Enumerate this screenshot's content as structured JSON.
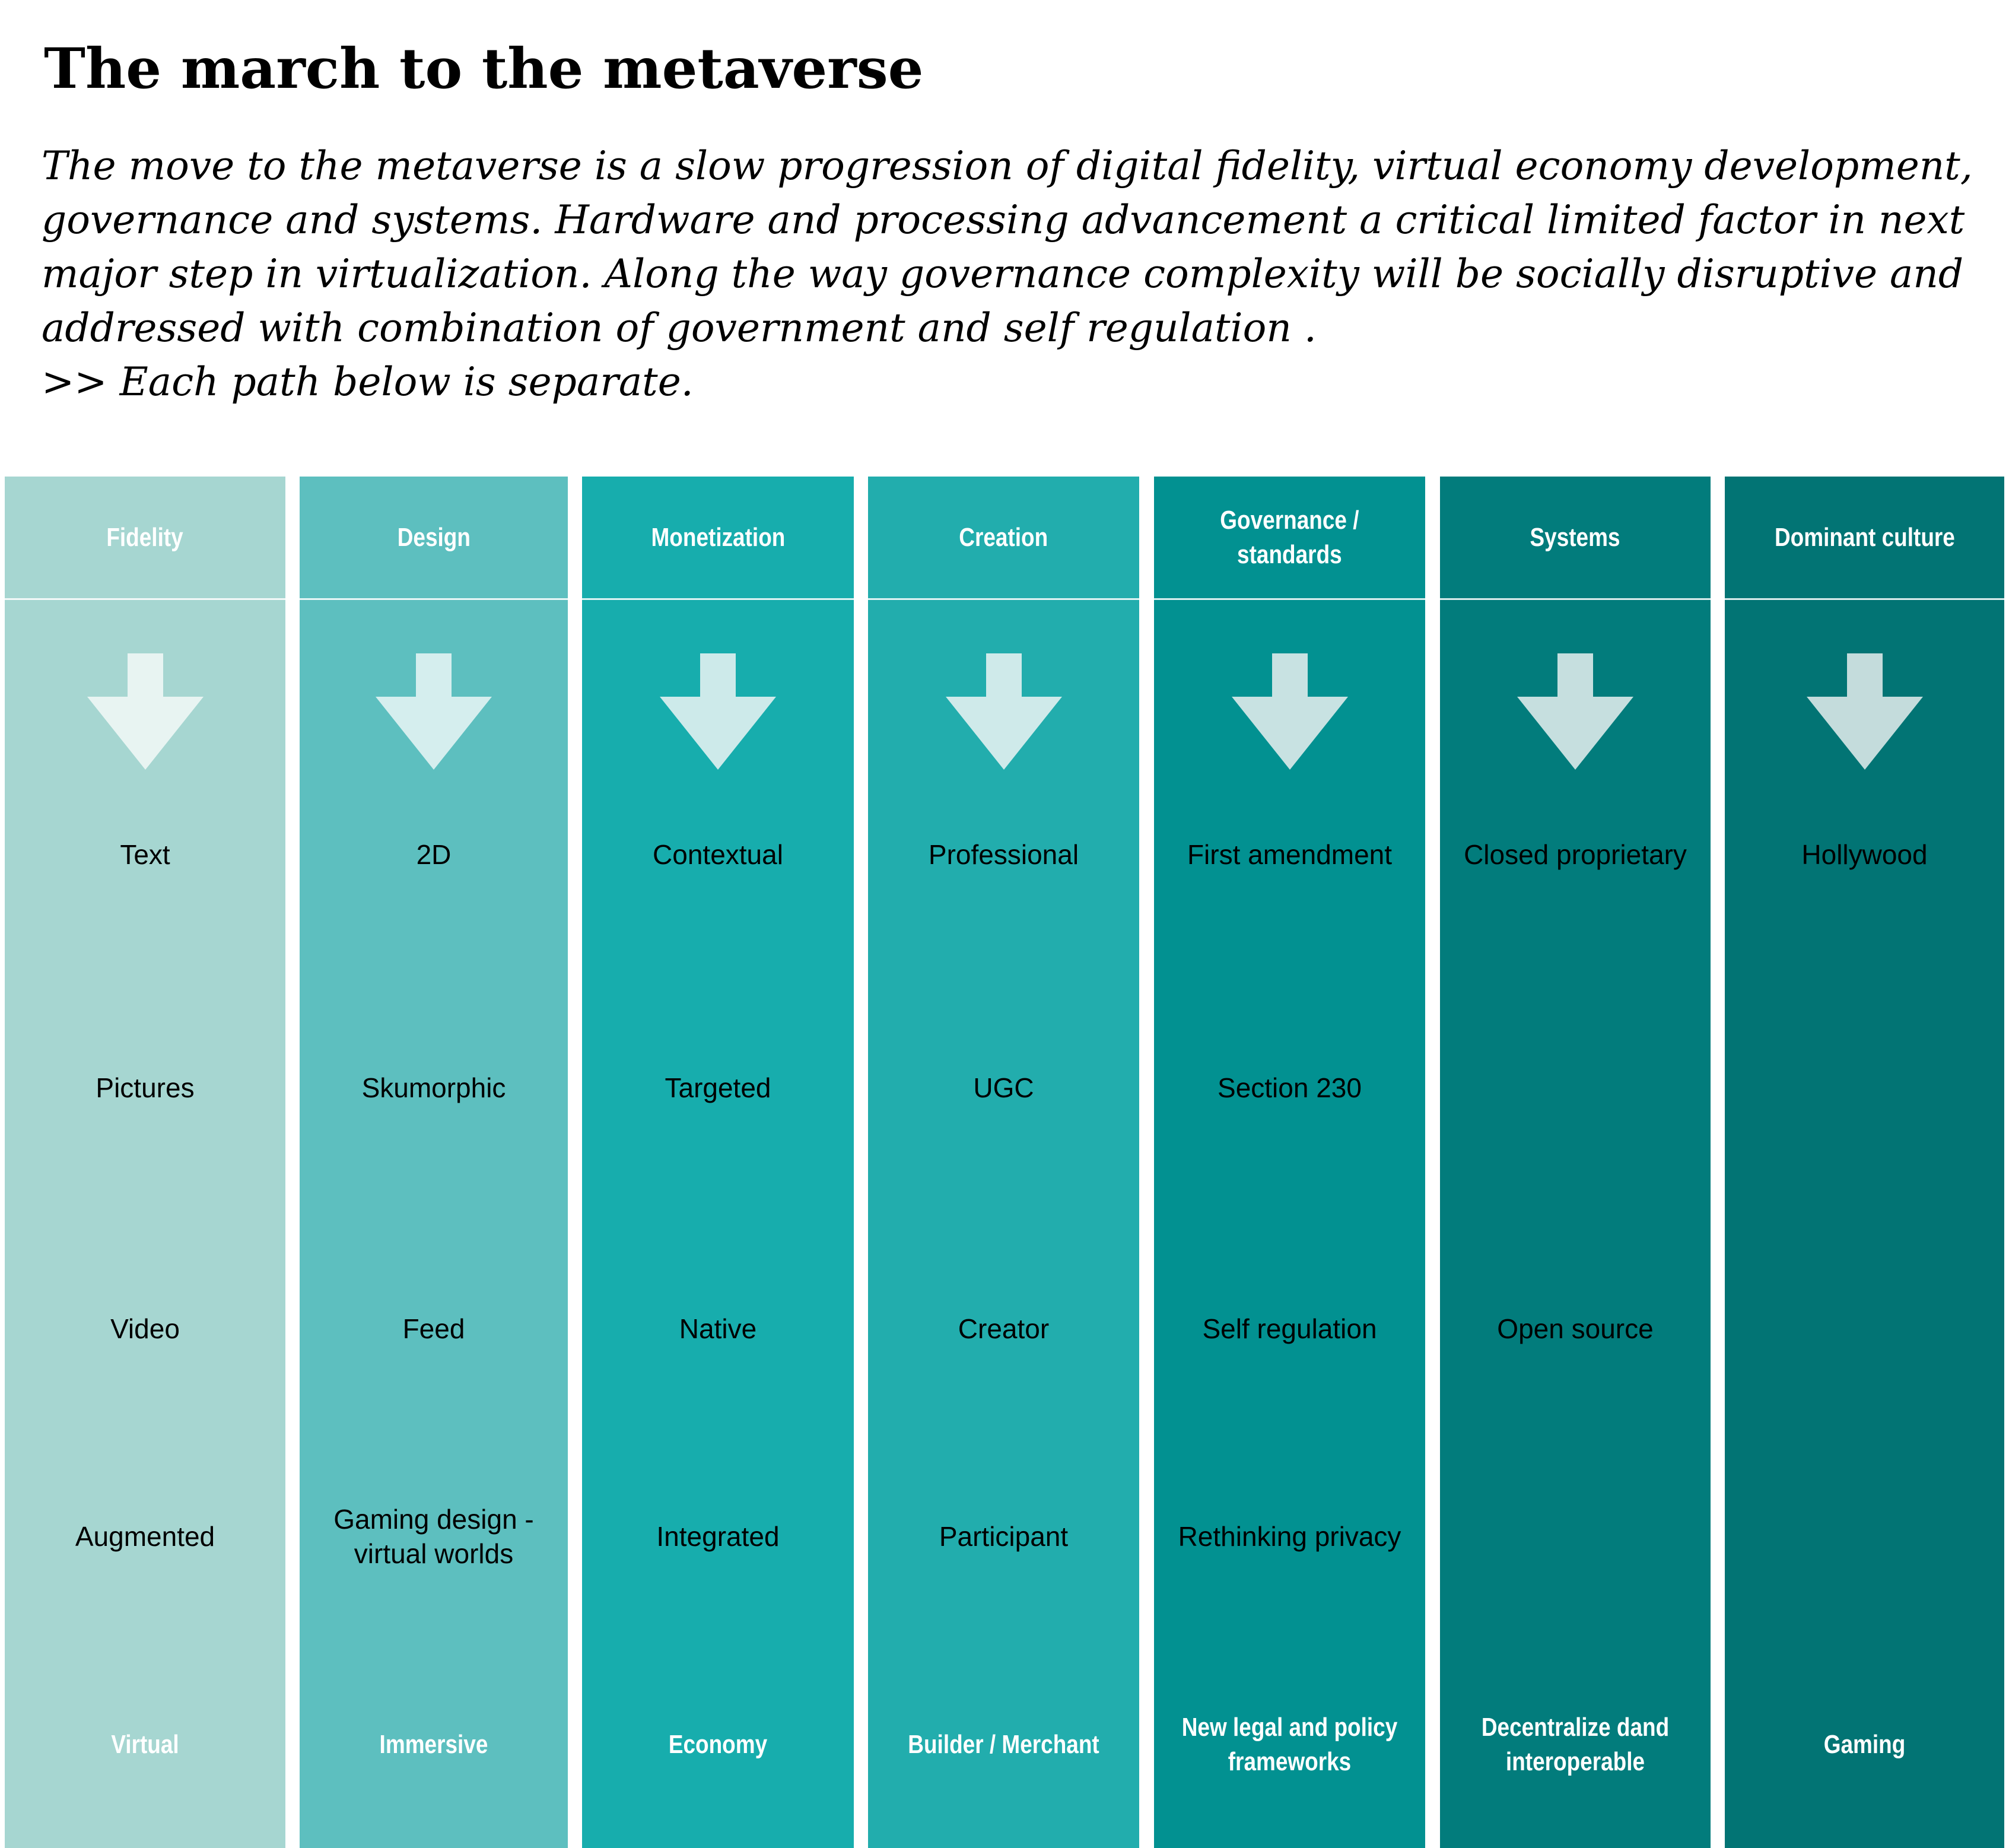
{
  "title": "The march to the metaverse",
  "intro": {
    "body": "The move to the metaverse is a slow progression of digital fidelity, virtual economy development, governance and systems. Hardware and processing advancement a critical limited factor in next major step in virtualization. Along the way governance complexity will be socially disruptive and addressed with combination of government and self regulation .",
    "note": ">> Each path below is separate."
  },
  "columns": [
    {
      "header": "Fidelity",
      "stages": [
        "Text",
        "Pictures",
        "Video",
        "Augmented"
      ],
      "footer": "Virtual",
      "color": "#a6d6d1",
      "arrow_color": "#e8f4f2"
    },
    {
      "header": "Design",
      "stages": [
        "2D",
        "Skumorphic",
        "Feed",
        "Gaming design -\nvirtual worlds"
      ],
      "footer": "Immersive",
      "color": "#5dbfbf",
      "arrow_color": "#d5eeee"
    },
    {
      "header": "Monetization",
      "stages": [
        "Contextual",
        "Targeted",
        "Native",
        "Integrated"
      ],
      "footer": "Economy",
      "color": "#17adad",
      "arrow_color": "#cdeaea"
    },
    {
      "header": "Creation",
      "stages": [
        "Professional",
        "UGC",
        "Creator",
        "Participant"
      ],
      "footer": "Builder / Merchant",
      "color": "#22adad",
      "arrow_color": "#cfeaea"
    },
    {
      "header": "Governance /\nstandards",
      "stages": [
        "First amendment",
        "Section 230",
        "Self regulation",
        "Rethinking privacy"
      ],
      "footer": "New legal and policy\nframeworks",
      "color": "#029191",
      "arrow_color": "#c8e2e2"
    },
    {
      "header": "Systems",
      "stages": [
        "Closed proprietary",
        "",
        "Open source",
        ""
      ],
      "footer": "Decentralize dand\ninteroperable",
      "color": "#027c7c",
      "arrow_color": "#c6dfdf"
    },
    {
      "header": "Dominant culture",
      "stages": [
        "Hollywood",
        "",
        "",
        ""
      ],
      "footer": "Gaming",
      "color": "#027474",
      "arrow_color": "#c4dcdc"
    }
  ]
}
